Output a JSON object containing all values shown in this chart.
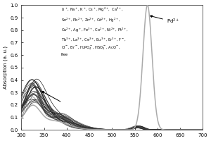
{
  "title": "",
  "xlabel": "",
  "ylabel": "Absorption (a. u.)",
  "xlim": [
    300,
    700
  ],
  "ylim": [
    0.0,
    1.0
  ],
  "yticks": [
    0.0,
    0.1,
    0.2,
    0.3,
    0.4,
    0.5,
    0.6,
    0.7,
    0.8,
    0.9,
    1.0
  ],
  "xticks": [
    300,
    350,
    400,
    450,
    500,
    550,
    600,
    650,
    700
  ],
  "legend_text_line1": "Li$^+$, Na$^+$, K$^+$, Cs$^+$, Mg$^{2+}$,  Ca$^{2+}$,",
  "legend_text_line2": "Sn$^{2+}$, Pb$^{2+}$, Zn$^{2+}$, Cd$^{2+}$, Hg$^{2+}$,",
  "legend_text_line3": "Cu$^{2+}$, Ag$^+$, Fe$^{3+}$, Co$^{2+}$, Ni$^{2+}$, Pt$^{2+}$,",
  "legend_text_line4": "Tb$^{3+}$, La$^{3+}$, Ce$^{3+}$, Eu$^{3+}$, Er$^{3+}$, F$^-$,",
  "legend_text_line5": "Cl$^-$, Br$^-$, H$_2$PO$_4^-$, HSO$_4^-$, AcO$^-$,",
  "legend_text_line6": "free",
  "pd_label": "Pd$^{2+}$",
  "background_color": "#ffffff",
  "line_color_pd": "#aaaaaa",
  "num_background_lines": 25
}
